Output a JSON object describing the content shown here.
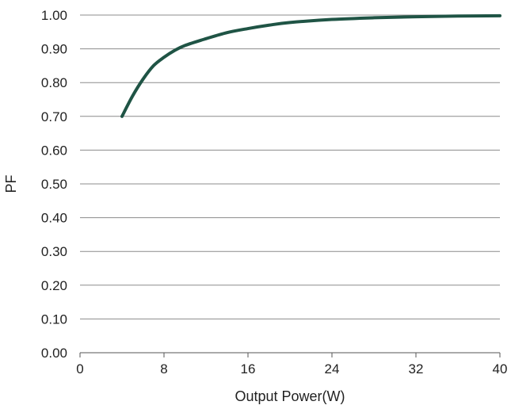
{
  "chart_data": {
    "type": "line",
    "title": "",
    "xlabel": "Output Power(W)",
    "ylabel": "PF",
    "xlim": [
      0,
      40
    ],
    "ylim": [
      0.0,
      1.0
    ],
    "x_ticks": [
      "0",
      "8",
      "16",
      "24",
      "32",
      "40"
    ],
    "x_tick_values": [
      0,
      8,
      16,
      24,
      32,
      40
    ],
    "y_ticks": [
      "0.00",
      "0.10",
      "0.20",
      "0.30",
      "0.40",
      "0.50",
      "0.60",
      "0.70",
      "0.80",
      "0.90",
      "1.00"
    ],
    "y_tick_values": [
      0.0,
      0.1,
      0.2,
      0.3,
      0.4,
      0.5,
      0.6,
      0.7,
      0.8,
      0.9,
      1.0
    ],
    "grid": "horizontal",
    "legend": "none",
    "series": [
      {
        "color": "#1f5445",
        "x": [
          4,
          5,
          6,
          7,
          8,
          9,
          10,
          12,
          14,
          16,
          18,
          20,
          24,
          28,
          32,
          36,
          40
        ],
        "y": [
          0.7,
          0.76,
          0.81,
          0.85,
          0.875,
          0.895,
          0.91,
          0.93,
          0.948,
          0.96,
          0.97,
          0.978,
          0.987,
          0.992,
          0.995,
          0.997,
          0.998
        ]
      }
    ]
  }
}
